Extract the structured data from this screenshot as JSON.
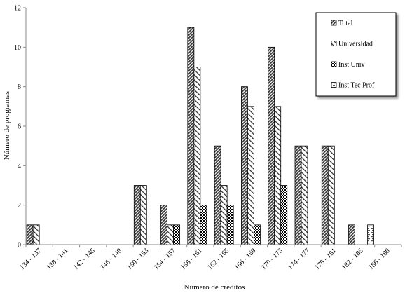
{
  "chart_data": {
    "type": "bar",
    "title": "",
    "xlabel": "Número de créditos",
    "ylabel": "Número de programas",
    "ylim": [
      0,
      12
    ],
    "yticks": [
      0,
      2,
      4,
      6,
      8,
      10,
      12
    ],
    "grid": false,
    "legend_position": "top-right",
    "categories": [
      "134 - 137",
      "138 - 141",
      "142 - 145",
      "146 - 149",
      "150 - 153",
      "154 - 157",
      "158 - 161",
      "162 - 165",
      "166 - 169",
      "170 - 173",
      "174 - 177",
      "178 - 181",
      "182 - 185",
      "186 - 189"
    ],
    "series": [
      {
        "name": "Total",
        "pattern": "dense-diagonal",
        "values": [
          1,
          0,
          0,
          0,
          3,
          2,
          11,
          5,
          8,
          10,
          5,
          5,
          1,
          0
        ]
      },
      {
        "name": "Universidad",
        "pattern": "wide-diagonal",
        "values": [
          1,
          0,
          0,
          0,
          3,
          1,
          9,
          3,
          7,
          7,
          5,
          5,
          0,
          0
        ]
      },
      {
        "name": "Inst Univ",
        "pattern": "checker",
        "values": [
          0,
          0,
          0,
          0,
          0,
          1,
          2,
          2,
          1,
          3,
          0,
          0,
          0,
          0
        ]
      },
      {
        "name": "Inst Tec Prof",
        "pattern": "dashes",
        "values": [
          0,
          0,
          0,
          0,
          0,
          0,
          0,
          0,
          0,
          0,
          0,
          0,
          1,
          0
        ]
      }
    ]
  }
}
